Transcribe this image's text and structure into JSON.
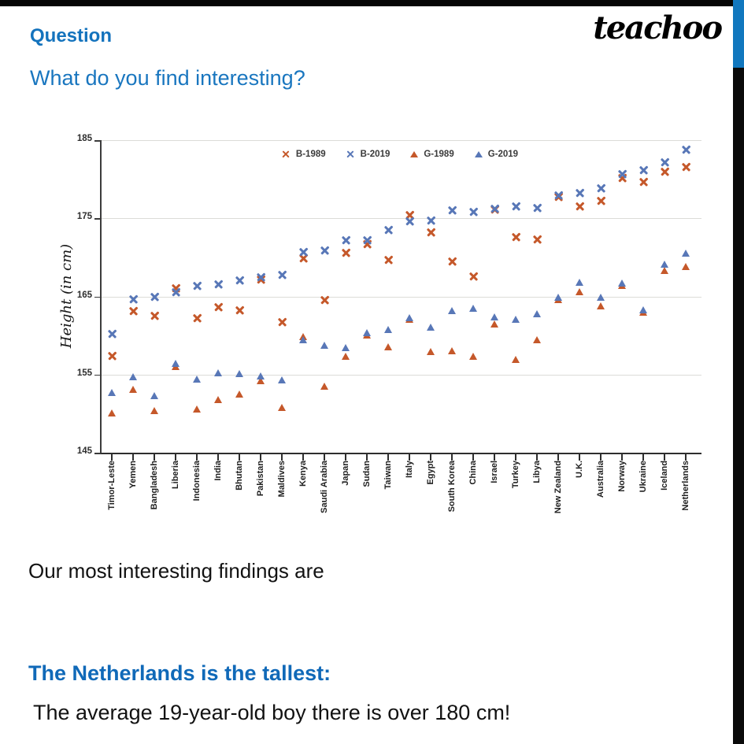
{
  "header": {
    "question_label": "Question",
    "subtitle": "What do you find interesting?",
    "logo_text": "teachoo"
  },
  "findings": {
    "intro": "Our most interesting findings are",
    "heading": "The Netherlands is the tallest:",
    "detail": "The average 19-year-old boy there is over 180 cm!"
  },
  "colors": {
    "accent_blue_text": "#1473BD",
    "series_1989_orange": "#C5582A",
    "series_2019_blue": "#5877B7",
    "stripe_blue": "#1177BE",
    "stripe_black": "#0A0A0A",
    "top_bar_black": "#060606"
  },
  "chart_data": {
    "type": "scatter",
    "title": "",
    "xlabel": "",
    "ylabel": "Height (in cm)",
    "ylim": [
      145,
      185
    ],
    "yticks": [
      145,
      155,
      165,
      175,
      185
    ],
    "grid": "horizontal",
    "legend_position": "top-center",
    "categories": [
      "Timor-Leste",
      "Yemen",
      "Bangladesh",
      "Liberia",
      "Indonesia",
      "India",
      "Bhutan",
      "Pakistan",
      "Maldives",
      "Kenya",
      "Saudi Arabia",
      "Japan",
      "Sudan",
      "Taiwan",
      "Italy",
      "Egypt",
      "South Korea",
      "China",
      "Israel",
      "Turkey",
      "Libya",
      "New Zealand",
      "U.K.",
      "Australia",
      "Norway",
      "Ukraine",
      "Iceland",
      "Netherlands"
    ],
    "series": [
      {
        "name": "B-1989",
        "marker": "x",
        "color": "#C5582A",
        "values": [
          157.2,
          163.0,
          162.4,
          165.9,
          162.1,
          163.5,
          163.1,
          167.0,
          161.6,
          169.7,
          164.4,
          170.4,
          171.5,
          169.5,
          175.3,
          173.1,
          169.3,
          167.4,
          176.0,
          172.5,
          172.2,
          177.6,
          176.4,
          177.1,
          180.0,
          179.5,
          180.8,
          181.4
        ]
      },
      {
        "name": "B-2019",
        "marker": "x",
        "color": "#5877B7",
        "values": [
          160.1,
          164.5,
          164.8,
          165.4,
          166.2,
          166.4,
          166.9,
          167.3,
          167.6,
          170.5,
          170.7,
          172.1,
          172.1,
          173.4,
          174.5,
          174.6,
          175.9,
          175.7,
          176.1,
          176.4,
          176.2,
          177.8,
          178.1,
          178.7,
          180.5,
          181.0,
          182.0,
          183.6
        ]
      },
      {
        "name": "G-1989",
        "marker": "triangle",
        "color": "#C5582A",
        "values": [
          150.0,
          153.1,
          150.3,
          156.0,
          150.5,
          151.8,
          152.5,
          154.2,
          150.7,
          159.8,
          153.5,
          157.3,
          160.0,
          158.5,
          162.0,
          157.9,
          158.0,
          157.3,
          161.4,
          156.9,
          159.4,
          164.5,
          165.6,
          163.7,
          166.4,
          162.9,
          168.3,
          168.8
        ]
      },
      {
        "name": "G-2019",
        "marker": "triangle",
        "color": "#5877B7",
        "values": [
          152.7,
          154.7,
          152.3,
          156.4,
          154.4,
          155.2,
          155.1,
          154.8,
          154.3,
          159.4,
          158.7,
          158.4,
          160.3,
          160.7,
          162.2,
          161.0,
          163.1,
          163.4,
          162.3,
          162.0,
          162.7,
          164.8,
          166.8,
          164.8,
          166.7,
          163.2,
          169.1,
          170.5
        ]
      }
    ]
  }
}
